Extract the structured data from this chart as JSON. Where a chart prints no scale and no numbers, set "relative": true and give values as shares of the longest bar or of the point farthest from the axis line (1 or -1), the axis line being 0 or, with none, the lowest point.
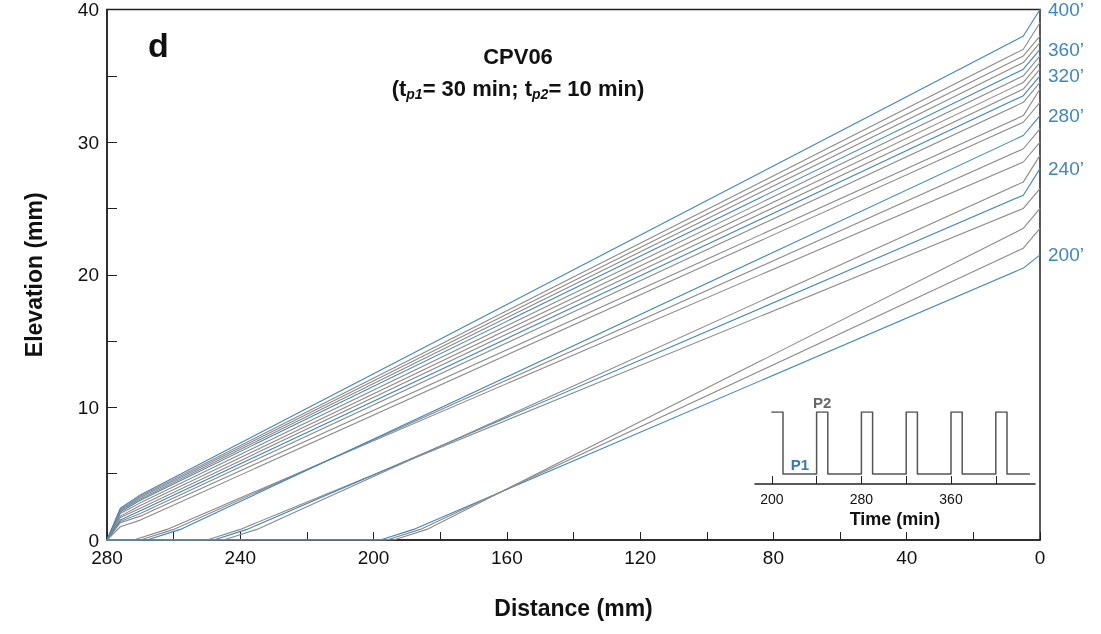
{
  "chart_data": [
    {
      "type": "line",
      "title": "CPV06",
      "subtitle": "(t$_{p1}$= 30 min; t$_{p2}$= 10 min)",
      "xlabel": "Distance (mm)",
      "ylabel": "Elevation (mm)",
      "annotations": [
        "d"
      ],
      "xlim": [
        280,
        0
      ],
      "xticks": [
        280,
        {
          "value": 260,
          "label": null
        },
        240,
        {
          "value": 220,
          "label": null
        },
        200,
        {
          "value": 180,
          "label": null
        },
        160,
        {
          "value": 140,
          "label": null
        },
        120,
        {
          "value": 100,
          "label": null
        },
        80,
        {
          "value": 60,
          "label": null
        },
        40,
        {
          "value": 20,
          "label": null
        },
        0
      ],
      "ylim": [
        0,
        40
      ],
      "yticks": [
        0,
        {
          "value": 5,
          "label": null
        },
        10,
        {
          "value": 15,
          "label": null
        },
        20,
        {
          "value": 25,
          "label": null
        },
        30,
        {
          "value": 35,
          "label": null
        },
        40
      ],
      "grid": false,
      "legend": false,
      "marker": "none",
      "series": [
        {
          "name": "200’",
          "color": "#3f86c0",
          "x": [
            280,
            198,
            188,
            5,
            0
          ],
          "values": [
            0,
            0,
            0.8,
            20.5,
            21.5
          ]
        },
        {
          "color": "#8a8a8a",
          "x": [
            280,
            196,
            186,
            5,
            0
          ],
          "values": [
            0,
            0,
            0.8,
            22,
            23.5
          ]
        },
        {
          "color": "#8a8a8a",
          "x": [
            280,
            194,
            184,
            5,
            0
          ],
          "values": [
            0,
            0,
            0.8,
            23.5,
            25
          ]
        },
        {
          "color": "#8a8a8a",
          "x": [
            280,
            250,
            240,
            5,
            0
          ],
          "values": [
            0,
            0,
            0.8,
            25,
            26.5
          ]
        },
        {
          "name": "240’",
          "color": "#3f86c0",
          "x": [
            280,
            248,
            238,
            5,
            0
          ],
          "values": [
            0,
            0,
            0.8,
            26,
            28
          ]
        },
        {
          "color": "#8a8a8a",
          "x": [
            280,
            245,
            235,
            5,
            0
          ],
          "values": [
            0,
            0,
            0.8,
            27,
            29
          ]
        },
        {
          "color": "#8a8a8a",
          "x": [
            280,
            272,
            262,
            5,
            0
          ],
          "values": [
            0,
            0,
            0.8,
            28.5,
            30
          ]
        },
        {
          "color": "#8a8a8a",
          "x": [
            280,
            270,
            260,
            5,
            0
          ],
          "values": [
            0,
            0,
            0.8,
            29.5,
            31
          ]
        },
        {
          "name": "280’",
          "color": "#3f86c0",
          "x": [
            280,
            268,
            258,
            5,
            0
          ],
          "values": [
            0,
            0,
            0.8,
            30.5,
            32
          ]
        },
        {
          "color": "#8a8a8a",
          "x": [
            280,
            276,
            270,
            5,
            0
          ],
          "values": [
            0,
            1,
            1.5,
            31.5,
            33
          ]
        },
        {
          "color": "#8a8a8a",
          "x": [
            280,
            276,
            270,
            5,
            0
          ],
          "values": [
            0,
            1.3,
            1.8,
            32,
            34
          ]
        },
        {
          "color": "#8a8a8a",
          "x": [
            280,
            276,
            270,
            5,
            0
          ],
          "values": [
            0,
            1.4,
            2,
            33,
            34.5
          ]
        },
        {
          "name": "320’",
          "color": "#3f86c0",
          "x": [
            280,
            276,
            270,
            5,
            0
          ],
          "values": [
            0,
            1.5,
            2.2,
            33.5,
            35
          ]
        },
        {
          "color": "#8a8a8a",
          "x": [
            280,
            276,
            270,
            5,
            0
          ],
          "values": [
            0,
            1.7,
            2.4,
            34,
            35.5
          ]
        },
        {
          "color": "#8a8a8a",
          "x": [
            280,
            276,
            270,
            5,
            0
          ],
          "values": [
            0,
            1.8,
            2.6,
            34.5,
            36
          ]
        },
        {
          "color": "#8a8a8a",
          "x": [
            280,
            276,
            270,
            5,
            0
          ],
          "values": [
            0,
            2,
            2.8,
            35,
            36.5
          ]
        },
        {
          "name": "360’",
          "color": "#3f86c0",
          "x": [
            280,
            276,
            270,
            5,
            0
          ],
          "values": [
            0,
            2.1,
            3,
            35.5,
            37
          ]
        },
        {
          "color": "#8a8a8a",
          "x": [
            280,
            276,
            270,
            5,
            0
          ],
          "values": [
            0,
            2.2,
            3.1,
            36,
            37.5
          ]
        },
        {
          "color": "#8a8a8a",
          "x": [
            280,
            276,
            270,
            5,
            0
          ],
          "values": [
            0,
            2.2,
            3.2,
            36.5,
            38
          ]
        },
        {
          "color": "#8a8a8a",
          "x": [
            280,
            276,
            270,
            5,
            0
          ],
          "values": [
            0,
            2.3,
            3.3,
            37,
            39
          ]
        },
        {
          "name": "400’",
          "color": "#3f86c0",
          "x": [
            280,
            276,
            270,
            5,
            0
          ],
          "values": [
            0,
            2.4,
            3.4,
            38,
            40
          ]
        }
      ]
    },
    {
      "type": "step",
      "relative": true,
      "xlabel": "Time (min)",
      "tick_labels": "x",
      "legend": false,
      "marker": "none",
      "grid": false,
      "xlim": [
        185,
        435
      ],
      "xticks": [
        200,
        {
          "value": 240,
          "label": null
        },
        280,
        {
          "value": 320,
          "label": null
        },
        360,
        {
          "value": 400,
          "label": null
        }
      ],
      "annotations": [
        {
          "text": "P1",
          "x": 225,
          "y": 0.14
        },
        {
          "text": "P2",
          "x": 245,
          "y": 1
        }
      ],
      "series": [
        {
          "color": "#555555",
          "x": [
            200,
            210,
            240,
            250,
            280,
            290,
            320,
            330,
            360,
            370,
            400,
            410,
            430
          ],
          "values": [
            1,
            0.14,
            1,
            0.14,
            1,
            0.14,
            1,
            0.14,
            1,
            0.14,
            1,
            0.14,
            0.14
          ]
        }
      ]
    }
  ]
}
